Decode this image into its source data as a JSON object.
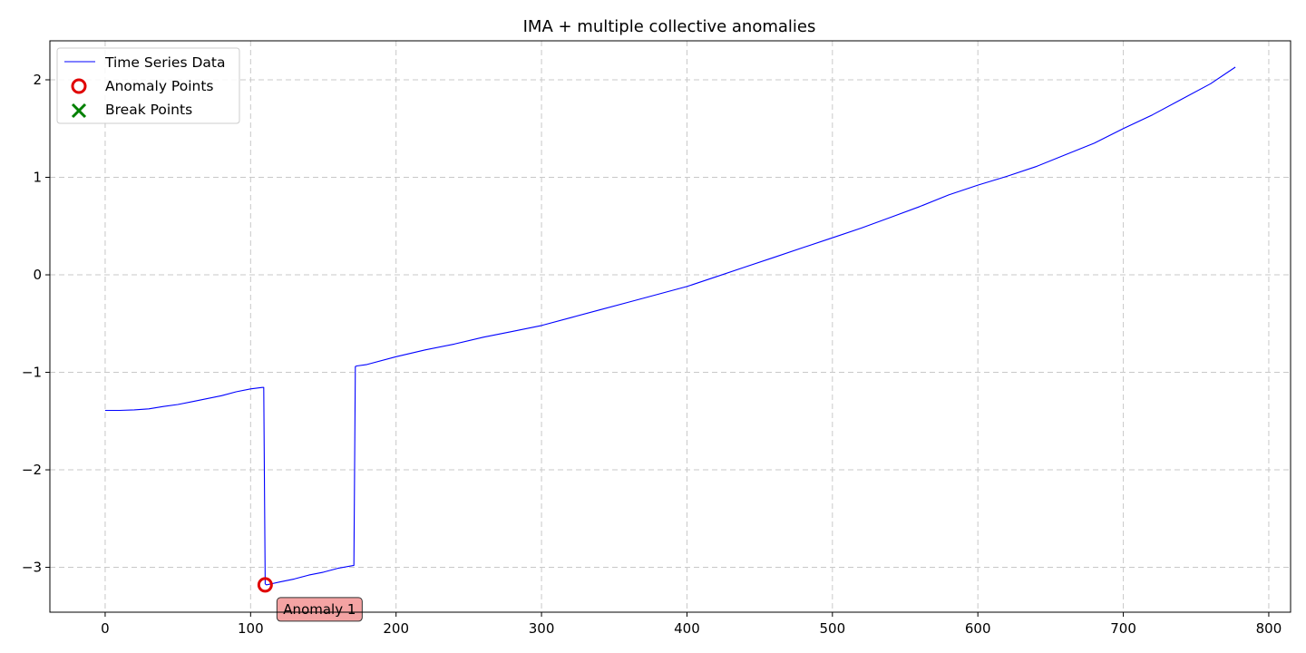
{
  "chart_data": {
    "type": "line",
    "title": "IMA + multiple collective anomalies",
    "xlabel": "",
    "ylabel": "",
    "xlim": [
      -38,
      815
    ],
    "ylim": [
      -3.46,
      2.4
    ],
    "xticks": [
      0,
      100,
      200,
      300,
      400,
      500,
      600,
      700,
      800
    ],
    "yticks": [
      -3,
      -2,
      -1,
      0,
      1,
      2
    ],
    "grid": true,
    "legend_position": "top-left",
    "colors": {
      "series": "#0000ff",
      "anomaly": "#e00000",
      "break": "#008000",
      "annotation_fill": "#f4a3a3"
    },
    "series": [
      {
        "name": "Time Series Data",
        "x": [
          0,
          10,
          20,
          30,
          40,
          50,
          60,
          70,
          80,
          90,
          100,
          108,
          109,
          110,
          111,
          120,
          130,
          140,
          150,
          160,
          171,
          172,
          173,
          180,
          200,
          220,
          240,
          260,
          280,
          300,
          320,
          340,
          360,
          380,
          400,
          420,
          440,
          460,
          480,
          500,
          520,
          540,
          560,
          580,
          600,
          620,
          640,
          660,
          680,
          700,
          720,
          740,
          760,
          777
        ],
        "y": [
          -1.39,
          -1.39,
          -1.385,
          -1.375,
          -1.35,
          -1.33,
          -1.3,
          -1.27,
          -1.24,
          -1.2,
          -1.17,
          -1.155,
          -1.155,
          -3.17,
          -3.18,
          -3.15,
          -3.12,
          -3.08,
          -3.05,
          -3.01,
          -2.98,
          -0.94,
          -0.935,
          -0.92,
          -0.84,
          -0.77,
          -0.71,
          -0.64,
          -0.58,
          -0.52,
          -0.44,
          -0.36,
          -0.28,
          -0.2,
          -0.12,
          -0.02,
          0.08,
          0.18,
          0.28,
          0.38,
          0.48,
          0.59,
          0.7,
          0.82,
          0.92,
          1.01,
          1.11,
          1.23,
          1.35,
          1.5,
          1.64,
          1.8,
          1.96,
          2.13
        ]
      }
    ],
    "anomaly_points": {
      "name": "Anomaly Points",
      "points": [
        {
          "x": 110,
          "y": -3.18
        }
      ]
    },
    "break_points": {
      "name": "Break Points",
      "points": []
    },
    "annotations": [
      {
        "text": "Anomaly 1",
        "x": 110,
        "y": -3.18
      }
    ]
  }
}
